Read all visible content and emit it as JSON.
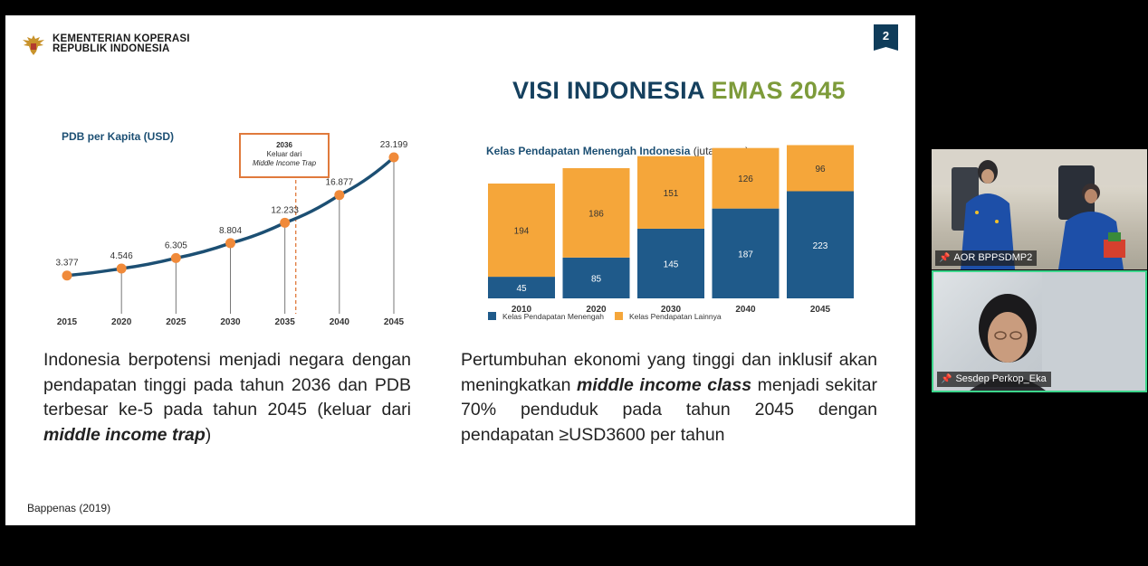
{
  "slide": {
    "ministry_line1": "KEMENTERIAN KOPERASI",
    "ministry_line2": "REPUBLIK INDONESIA",
    "page_number": "2",
    "headline_part1": "VISI INDONESIA ",
    "headline_part2": "EMAS 2045",
    "callout_year": "2036",
    "callout_line2": "Keluar dari",
    "callout_line3": "Middle Income Trap",
    "para_left_1": "Indonesia berpotensi menjadi negara dengan pendapatan tinggi pada tahun 2036 dan PDB terbesar ke-5 pada tahun 2045 (keluar dari ",
    "para_left_em": "middle income trap",
    "para_left_2": ")",
    "para_right_1": "Pertumbuhan ekonomi yang tinggi dan inklusif akan meningkatkan ",
    "para_right_em": "middle income class",
    "para_right_2": " menjadi sekitar 70% penduduk pada tahun 2045 dengan pendapatan ≥USD3600 per tahun",
    "source": "Bappenas (2019)",
    "colors": {
      "navy": "#15405e",
      "gold": "#7d9b3a",
      "orange": "#f08a3a",
      "bar_blue": "#1f5a8a",
      "bar_orange": "#f5a63a"
    }
  },
  "chart_data": [
    {
      "type": "line",
      "title": "PDB per Kapita (USD)",
      "categories": [
        "2015",
        "2020",
        "2025",
        "2030",
        "2035",
        "2040",
        "2045"
      ],
      "values": [
        3377,
        4546,
        6305,
        8804,
        12233,
        16877,
        23199
      ],
      "value_labels": [
        "3.377",
        "4.546",
        "6.305",
        "8.804",
        "12.233",
        "16.877",
        "23.199"
      ],
      "marker_line_x": 2036
    },
    {
      "type": "bar",
      "stacked": true,
      "title": "Kelas Pendapatan Menengah Indonesia",
      "title_unit": "(juta orang)",
      "categories": [
        "2010",
        "2020",
        "2030",
        "2040",
        "2045"
      ],
      "series": [
        {
          "name": "Kelas Pendapatan Menengah",
          "values": [
            45,
            85,
            145,
            187,
            223
          ],
          "color": "#1f5a8a"
        },
        {
          "name": "Kelas Pendapatan Lainnya",
          "values": [
            194,
            186,
            151,
            126,
            96
          ],
          "color": "#f5a63a"
        }
      ],
      "legend": "bottom-left"
    }
  ],
  "participants": [
    {
      "name": "AOR BPPSDMP2"
    },
    {
      "name": "Sesdep Perkop_Eka"
    }
  ]
}
